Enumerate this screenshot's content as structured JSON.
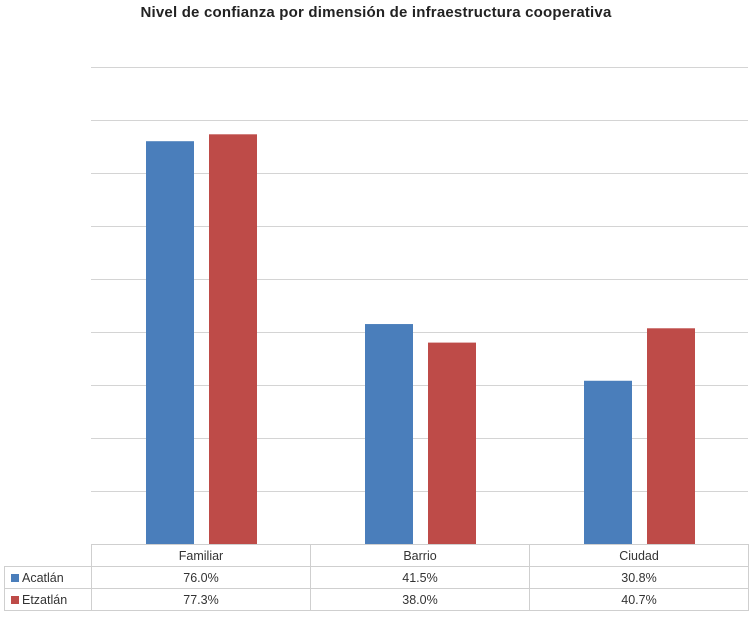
{
  "chart_data": {
    "type": "bar",
    "title": "Nivel de confianza por dimensión de infraestructura cooperativa",
    "categories": [
      "Familiar",
      "Barrio",
      "Ciudad"
    ],
    "series": [
      {
        "name": "Acatlán",
        "color": "#4a7ebb",
        "values": [
          76.0,
          41.5,
          30.8
        ],
        "labels": [
          "76.0%",
          "41.5%",
          "30.8%"
        ]
      },
      {
        "name": "Etzatlán",
        "color": "#be4b48",
        "values": [
          77.3,
          38.0,
          40.7
        ],
        "labels": [
          "77.3%",
          "38.0%",
          "40.7%"
        ]
      }
    ],
    "ylim": [
      0,
      90
    ],
    "y_major_step": 10,
    "grid": true,
    "xlabel": "",
    "ylabel": "",
    "legend": "data-table-bottom"
  }
}
